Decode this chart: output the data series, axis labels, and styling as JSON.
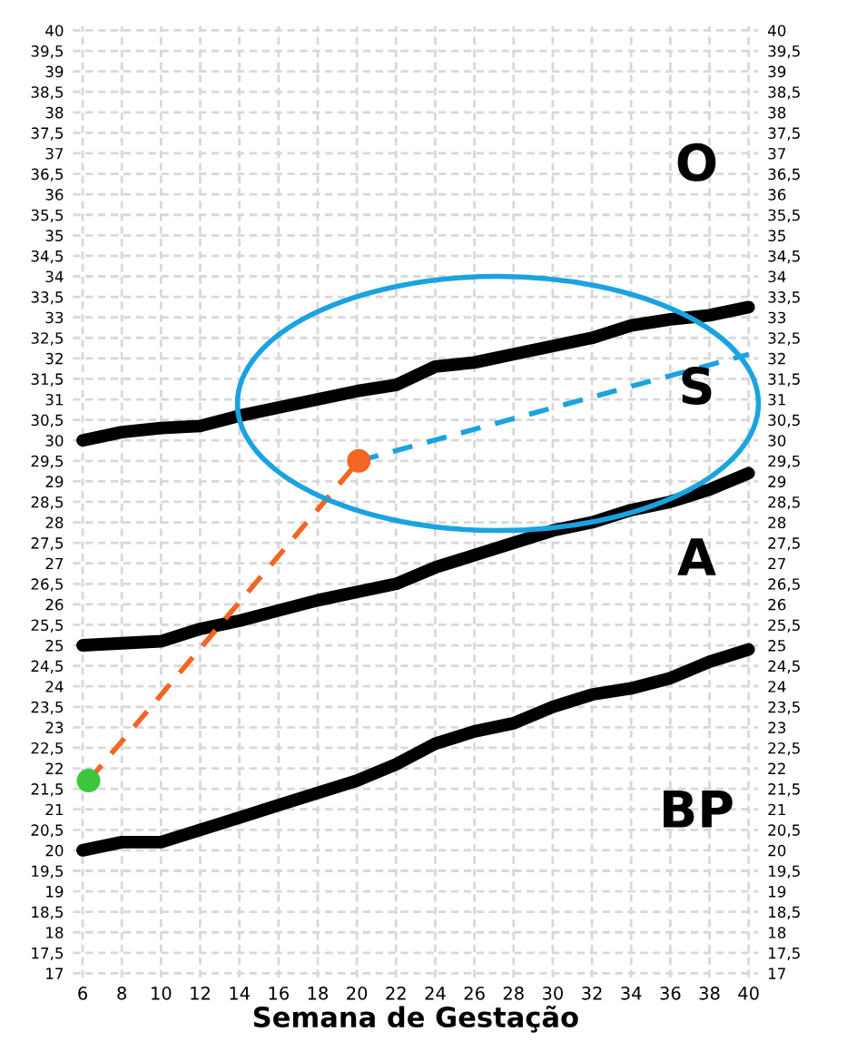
{
  "chart_data": {
    "type": "line",
    "xlabel": "Semana de Gestação",
    "xlim": [
      5.5,
      40.5
    ],
    "xticks": [
      6,
      8,
      10,
      12,
      14,
      16,
      18,
      20,
      22,
      24,
      26,
      28,
      30,
      32,
      34,
      36,
      38,
      40
    ],
    "ylim": [
      16.9,
      40.1
    ],
    "yticks": [
      17,
      {
        "value": 17.5,
        "label": "17,5"
      },
      18,
      {
        "value": 18.5,
        "label": "18,5"
      },
      19,
      {
        "value": 19.5,
        "label": "19,5"
      },
      20,
      {
        "value": 20.5,
        "label": "20,5"
      },
      21,
      {
        "value": 21.5,
        "label": "21,5"
      },
      22,
      {
        "value": 22.5,
        "label": "22,5"
      },
      23,
      {
        "value": 23.5,
        "label": "23,5"
      },
      24,
      {
        "value": 24.5,
        "label": "24,5"
      },
      25,
      {
        "value": 25.5,
        "label": "25,5"
      },
      26,
      {
        "value": 26.5,
        "label": "26,5"
      },
      27,
      {
        "value": 27.5,
        "label": "27,5"
      },
      28,
      {
        "value": 28.5,
        "label": "28,5"
      },
      29,
      {
        "value": 29.5,
        "label": "29,5"
      },
      30,
      {
        "value": 30.5,
        "label": "30,5"
      },
      31,
      {
        "value": 31.5,
        "label": "31,5"
      },
      32,
      {
        "value": 32.5,
        "label": "32,5"
      },
      33,
      {
        "value": 33.5,
        "label": "33,5"
      },
      34,
      {
        "value": 34.5,
        "label": "34,5"
      },
      35,
      {
        "value": 35.5,
        "label": "35,5"
      },
      36,
      {
        "value": 36.5,
        "label": "36,5"
      },
      37,
      {
        "value": 37.5,
        "label": "37,5"
      },
      38,
      {
        "value": 38.5,
        "label": "38,5"
      },
      39,
      {
        "value": 39.5,
        "label": "39,5"
      },
      40
    ],
    "y2lim": [
      16.9,
      40.1
    ],
    "y2ticks": [
      17,
      {
        "value": 17.5,
        "label": "17,5"
      },
      18,
      {
        "value": 18.5,
        "label": "18,5"
      },
      19,
      {
        "value": 19.5,
        "label": "19,5"
      },
      20,
      {
        "value": 20.5,
        "label": "20,5"
      },
      21,
      {
        "value": 21.5,
        "label": "21,5"
      },
      22,
      {
        "value": 22.5,
        "label": "22,5"
      },
      23,
      {
        "value": 23.5,
        "label": "23,5"
      },
      24,
      {
        "value": 24.5,
        "label": "24,5"
      },
      25,
      {
        "value": 25.5,
        "label": "25,5"
      },
      26,
      {
        "value": 26.5,
        "label": "26,5"
      },
      27,
      {
        "value": 27.5,
        "label": "27,5"
      },
      28,
      {
        "value": 28.5,
        "label": "28,5"
      },
      29,
      {
        "value": 29.5,
        "label": "29,5"
      },
      30,
      {
        "value": 30.5,
        "label": "30,5"
      },
      31,
      {
        "value": 31.5,
        "label": "31,5"
      },
      32,
      {
        "value": 32.5,
        "label": "32,5"
      },
      33,
      {
        "value": 33.5,
        "label": "33,5"
      },
      34,
      {
        "value": 34.5,
        "label": "34,5"
      },
      35,
      {
        "value": 35.5,
        "label": "35,5"
      },
      36,
      {
        "value": 36.5,
        "label": "36,5"
      },
      37,
      {
        "value": 37.5,
        "label": "37,5"
      },
      38,
      {
        "value": 38.5,
        "label": "38,5"
      },
      39,
      {
        "value": 39.5,
        "label": "39,5"
      },
      40
    ],
    "grid": true,
    "x": [
      6,
      8,
      10,
      12,
      14,
      16,
      18,
      20,
      22,
      24,
      26,
      28,
      30,
      32,
      34,
      36,
      38,
      40
    ],
    "series": [
      {
        "color": "#000000",
        "values": [
          30,
          30.2,
          30.3,
          30.35,
          30.6,
          30.8,
          31.0,
          31.2,
          31.35,
          31.8,
          31.9,
          32.1,
          32.3,
          32.5,
          32.8,
          32.95,
          33.05,
          33.25
        ]
      },
      {
        "color": "#000000",
        "values": [
          25,
          25.05,
          25.1,
          25.4,
          25.6,
          25.85,
          26.1,
          26.3,
          26.5,
          26.9,
          27.2,
          27.5,
          27.8,
          28.0,
          28.3,
          28.5,
          28.8,
          29.2
        ]
      },
      {
        "color": "#000000",
        "values": [
          20,
          20.2,
          20.2,
          20.5,
          20.8,
          21.1,
          21.4,
          21.7,
          22.1,
          22.6,
          22.9,
          23.1,
          23.5,
          23.8,
          23.95,
          24.2,
          24.6,
          24.9
        ]
      },
      {
        "color": "#f26522",
        "x": [
          6.3,
          20.1
        ],
        "values": [
          21.7,
          29.5
        ],
        "line_style": "dashed"
      },
      {
        "color": "#1aa3e0",
        "x": [
          20.1,
          40
        ],
        "values": [
          29.5,
          32.1
        ],
        "line_style": "dashed"
      },
      {
        "type": "scatter",
        "color": "#3cc63c",
        "x": [
          6.3
        ],
        "values": [
          21.7
        ],
        "marker": "circle"
      },
      {
        "type": "scatter",
        "color": "#f26522",
        "x": [
          20.1
        ],
        "values": [
          29.5
        ],
        "marker": "circle"
      }
    ],
    "annotations": [
      "O",
      "S",
      "A",
      "BP"
    ]
  }
}
